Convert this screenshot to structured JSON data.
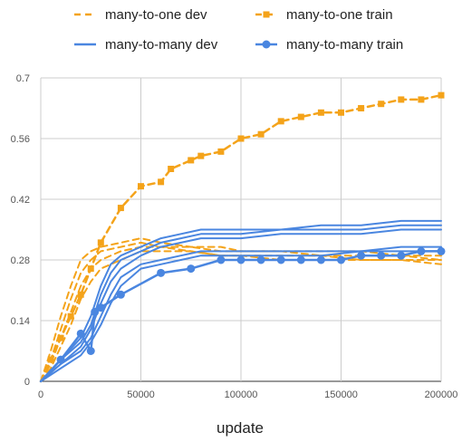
{
  "chart_data": {
    "type": "line",
    "xlabel": "update",
    "ylabel": "",
    "xlim": [
      0,
      200000
    ],
    "ylim": [
      0,
      0.7
    ],
    "x_ticks": [
      "0",
      "50000",
      "100000",
      "150000",
      "200000"
    ],
    "y_ticks": [
      "0",
      "0.14",
      "0.28",
      "0.42",
      "0.56",
      "0.7"
    ],
    "grid": true,
    "legend_position": "top",
    "colors": {
      "orange": "#F4A31A",
      "blue": "#4A86E0"
    },
    "legend": [
      {
        "name": "many-to-one dev",
        "style": "dashed",
        "marker": "none",
        "color": "#F4A31A"
      },
      {
        "name": "many-to-one train",
        "style": "dashed",
        "marker": "square",
        "color": "#F4A31A"
      },
      {
        "name": "many-to-many dev",
        "style": "solid",
        "marker": "none",
        "color": "#4A86E0"
      },
      {
        "name": "many-to-many train",
        "style": "solid",
        "marker": "circle",
        "color": "#4A86E0"
      }
    ],
    "series": [
      {
        "group": "many-to-one dev",
        "style": "dashed",
        "color": "#F4A31A",
        "x": [
          0,
          5000,
          10000,
          15000,
          20000,
          25000,
          30000,
          40000,
          50000,
          60000,
          75000,
          90000,
          100000,
          120000,
          140000,
          160000,
          180000,
          200000
        ],
        "y": [
          0,
          0.07,
          0.15,
          0.22,
          0.28,
          0.3,
          0.31,
          0.32,
          0.33,
          0.32,
          0.31,
          0.31,
          0.3,
          0.3,
          0.3,
          0.3,
          0.29,
          0.29
        ]
      },
      {
        "group": "many-to-one dev",
        "style": "dashed",
        "color": "#F4A31A",
        "x": [
          0,
          5000,
          10000,
          15000,
          20000,
          25000,
          30000,
          40000,
          50000,
          60000,
          75000,
          90000,
          100000,
          120000,
          140000,
          160000,
          180000,
          200000
        ],
        "y": [
          0,
          0.05,
          0.12,
          0.19,
          0.25,
          0.28,
          0.3,
          0.31,
          0.32,
          0.31,
          0.31,
          0.3,
          0.3,
          0.3,
          0.29,
          0.29,
          0.29,
          0.28
        ]
      },
      {
        "group": "many-to-one dev",
        "style": "dashed",
        "color": "#F4A31A",
        "x": [
          0,
          5000,
          10000,
          15000,
          20000,
          25000,
          30000,
          40000,
          50000,
          60000,
          75000,
          90000,
          100000,
          120000,
          140000,
          160000,
          180000,
          200000
        ],
        "y": [
          0,
          0.04,
          0.1,
          0.16,
          0.22,
          0.26,
          0.28,
          0.3,
          0.31,
          0.31,
          0.3,
          0.29,
          0.29,
          0.29,
          0.29,
          0.28,
          0.28,
          0.28
        ]
      },
      {
        "group": "many-to-one dev",
        "style": "dashed",
        "color": "#F4A31A",
        "x": [
          0,
          5000,
          10000,
          15000,
          20000,
          25000,
          30000,
          40000,
          50000,
          60000,
          75000,
          90000,
          100000,
          120000,
          140000,
          160000,
          180000,
          200000
        ],
        "y": [
          0,
          0.03,
          0.08,
          0.13,
          0.19,
          0.23,
          0.26,
          0.28,
          0.3,
          0.3,
          0.3,
          0.29,
          0.29,
          0.28,
          0.28,
          0.28,
          0.28,
          0.27
        ]
      },
      {
        "group": "many-to-one train",
        "style": "dashed",
        "color": "#F4A31A",
        "marker": "square",
        "x": [
          0,
          5000,
          10000,
          15000,
          20000,
          25000,
          30000,
          40000,
          50000,
          60000,
          65000,
          75000,
          80000,
          90000,
          100000,
          110000,
          120000,
          130000,
          140000,
          150000,
          160000,
          170000,
          180000,
          190000,
          200000
        ],
        "y": [
          0,
          0.05,
          0.1,
          0.15,
          0.2,
          0.26,
          0.32,
          0.4,
          0.45,
          0.46,
          0.49,
          0.51,
          0.52,
          0.53,
          0.56,
          0.57,
          0.6,
          0.61,
          0.62,
          0.62,
          0.63,
          0.64,
          0.65,
          0.65,
          0.66
        ]
      },
      {
        "group": "many-to-many dev",
        "style": "solid",
        "color": "#4A86E0",
        "x": [
          0,
          10000,
          20000,
          25000,
          30000,
          35000,
          40000,
          50000,
          60000,
          70000,
          80000,
          90000,
          100000,
          120000,
          140000,
          160000,
          180000,
          200000
        ],
        "y": [
          0,
          0.05,
          0.1,
          0.15,
          0.22,
          0.27,
          0.29,
          0.31,
          0.33,
          0.34,
          0.35,
          0.35,
          0.35,
          0.35,
          0.36,
          0.36,
          0.37,
          0.37
        ]
      },
      {
        "group": "many-to-many dev",
        "style": "solid",
        "color": "#4A86E0",
        "x": [
          0,
          10000,
          20000,
          25000,
          30000,
          35000,
          40000,
          50000,
          60000,
          70000,
          80000,
          90000,
          100000,
          120000,
          140000,
          160000,
          180000,
          200000
        ],
        "y": [
          0,
          0.05,
          0.09,
          0.13,
          0.2,
          0.25,
          0.28,
          0.3,
          0.32,
          0.33,
          0.34,
          0.34,
          0.34,
          0.35,
          0.35,
          0.35,
          0.36,
          0.36
        ]
      },
      {
        "group": "many-to-many dev",
        "style": "solid",
        "color": "#4A86E0",
        "x": [
          0,
          10000,
          20000,
          25000,
          30000,
          35000,
          40000,
          50000,
          60000,
          70000,
          80000,
          90000,
          100000,
          120000,
          140000,
          160000,
          180000,
          200000
        ],
        "y": [
          0,
          0.04,
          0.08,
          0.12,
          0.18,
          0.23,
          0.26,
          0.29,
          0.31,
          0.32,
          0.33,
          0.33,
          0.33,
          0.34,
          0.34,
          0.34,
          0.35,
          0.35
        ]
      },
      {
        "group": "many-to-many dev",
        "style": "solid",
        "color": "#4A86E0",
        "x": [
          0,
          10000,
          20000,
          25000,
          30000,
          35000,
          40000,
          50000,
          60000,
          70000,
          80000,
          90000,
          100000,
          120000,
          140000,
          160000,
          180000,
          200000
        ],
        "y": [
          0,
          0.04,
          0.07,
          0.1,
          0.15,
          0.2,
          0.24,
          0.27,
          0.28,
          0.29,
          0.3,
          0.3,
          0.3,
          0.3,
          0.3,
          0.3,
          0.31,
          0.31
        ]
      },
      {
        "group": "many-to-many dev",
        "style": "solid",
        "color": "#4A86E0",
        "x": [
          0,
          10000,
          20000,
          25000,
          30000,
          35000,
          40000,
          50000,
          60000,
          70000,
          80000,
          90000,
          100000,
          120000,
          140000,
          160000,
          180000,
          200000
        ],
        "y": [
          0,
          0.03,
          0.06,
          0.09,
          0.13,
          0.18,
          0.22,
          0.26,
          0.27,
          0.28,
          0.29,
          0.29,
          0.29,
          0.29,
          0.29,
          0.3,
          0.3,
          0.3
        ]
      },
      {
        "group": "many-to-many train",
        "style": "solid",
        "color": "#4A86E0",
        "marker": "circle",
        "x": [
          0,
          10000,
          20000,
          25000,
          27000,
          30000,
          40000,
          60000,
          75000,
          90000,
          100000,
          110000,
          120000,
          130000,
          140000,
          150000,
          160000,
          170000,
          180000,
          190000,
          200000
        ],
        "y": [
          0,
          0.05,
          0.11,
          0.07,
          0.16,
          0.17,
          0.2,
          0.25,
          0.26,
          0.28,
          0.28,
          0.28,
          0.28,
          0.28,
          0.28,
          0.28,
          0.29,
          0.29,
          0.29,
          0.3,
          0.3
        ]
      }
    ]
  }
}
